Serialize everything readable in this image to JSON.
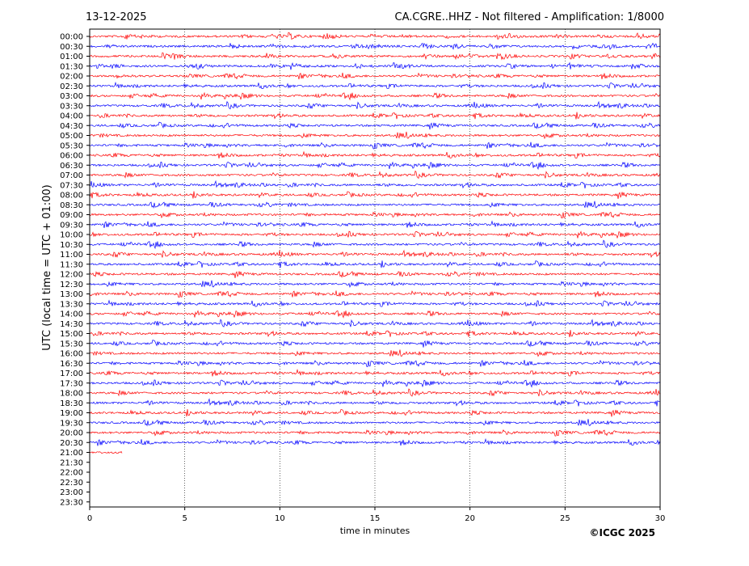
{
  "header": {
    "date": "13-12-2025",
    "station_title": "CA.CGRE..HHZ - Not filtered - Amplification: 1/8000"
  },
  "footer": {
    "copyright": "©ICGC 2025"
  },
  "chart_data": {
    "type": "line",
    "title": "CA.CGRE..HHZ - Not filtered - Amplification: 1/8000",
    "date": "13-12-2025",
    "xlabel": "time in minutes",
    "ylabel": "UTC (local time = UTC + 01:00)",
    "xlim": [
      0,
      30
    ],
    "x_ticks": [
      0,
      5,
      10,
      15,
      20,
      25,
      30
    ],
    "grid": "vertical dotted lines at 5, 10, 15, 20, 25",
    "row_labels": [
      "00:00",
      "00:30",
      "01:00",
      "01:30",
      "02:00",
      "02:30",
      "03:00",
      "03:30",
      "04:00",
      "04:30",
      "05:00",
      "05:30",
      "06:00",
      "06:30",
      "07:00",
      "07:30",
      "08:00",
      "08:30",
      "09:00",
      "09:30",
      "10:00",
      "10:30",
      "11:00",
      "11:30",
      "12:00",
      "12:30",
      "13:00",
      "13:30",
      "14:00",
      "14:30",
      "15:00",
      "15:30",
      "16:00",
      "16:30",
      "17:00",
      "17:30",
      "18:00",
      "18:30",
      "19:00",
      "19:30",
      "20:00",
      "20:30",
      "21:00",
      "21:30",
      "22:00",
      "22:30",
      "23:00",
      "23:30"
    ],
    "trace_colors": [
      "#ff0000",
      "#0000ff"
    ],
    "recorded_rows": 43,
    "last_row_end_minute": 1.7
  }
}
